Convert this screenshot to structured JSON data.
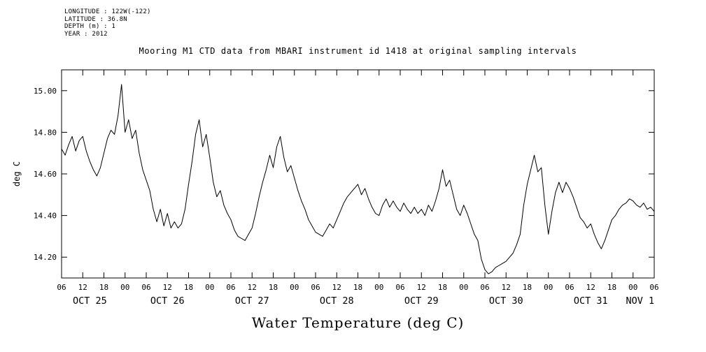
{
  "page": {
    "background": "#ffffff"
  },
  "meta": {
    "lines": [
      "LONGITUDE : 122W(-122)",
      "LATITUDE : 36.8N",
      "DEPTH (m) : 1",
      "YEAR : 2012"
    ]
  },
  "title": "Mooring M1 CTD data from MBARI instrument id 1418 at original sampling intervals",
  "chart_data": {
    "type": "line",
    "title": "Mooring M1 CTD data from MBARI instrument id 1418 at original sampling intervals",
    "ylabel": "deg C",
    "xlabel": "Water Temperature (deg C)",
    "grid": false,
    "line_color": "#000000",
    "axis_color": "#000000",
    "ylim": [
      14.1,
      15.1
    ],
    "x_range_hours": [
      0,
      168
    ],
    "x_start": "2012-10-25 06:00",
    "x_tick_interval_hours": 6,
    "x_tick_labels": [
      "06",
      "12",
      "18",
      "00",
      "06",
      "12",
      "18",
      "00",
      "06",
      "12",
      "18",
      "00",
      "06",
      "12",
      "18",
      "00",
      "06",
      "12",
      "18",
      "00",
      "06",
      "12",
      "18",
      "00",
      "06",
      "12",
      "18",
      "00",
      "06"
    ],
    "y_ticks": [
      {
        "value": 14.2,
        "label": "14.20"
      },
      {
        "value": 14.4,
        "label": "14.40"
      },
      {
        "value": 14.6,
        "label": "14.60"
      },
      {
        "value": 14.8,
        "label": "14.80"
      },
      {
        "value": 15.0,
        "label": "15.00"
      }
    ],
    "date_labels": [
      {
        "label": "OCT 25",
        "hour": 8
      },
      {
        "label": "OCT 26",
        "hour": 30
      },
      {
        "label": "OCT 27",
        "hour": 54
      },
      {
        "label": "OCT 28",
        "hour": 78
      },
      {
        "label": "OCT 29",
        "hour": 102
      },
      {
        "label": "OCT 30",
        "hour": 126
      },
      {
        "label": "OCT 31",
        "hour": 150
      },
      {
        "label": "NOV 1",
        "hour": 164
      }
    ],
    "series": [
      {
        "name": "Water Temperature (deg C)",
        "x_step_hours": 1,
        "y": [
          14.72,
          14.69,
          14.74,
          14.78,
          14.71,
          14.76,
          14.78,
          14.71,
          14.66,
          14.62,
          14.59,
          14.63,
          14.7,
          14.77,
          14.81,
          14.79,
          14.88,
          15.03,
          14.8,
          14.86,
          14.77,
          14.81,
          14.7,
          14.62,
          14.57,
          14.52,
          14.43,
          14.37,
          14.43,
          14.35,
          14.41,
          14.34,
          14.37,
          14.34,
          14.36,
          14.43,
          14.55,
          14.66,
          14.79,
          14.86,
          14.73,
          14.79,
          14.68,
          14.56,
          14.49,
          14.52,
          14.45,
          14.41,
          14.38,
          14.33,
          14.3,
          14.29,
          14.28,
          14.31,
          14.34,
          14.41,
          14.49,
          14.56,
          14.62,
          14.69,
          14.63,
          14.73,
          14.78,
          14.68,
          14.61,
          14.64,
          14.58,
          14.52,
          14.47,
          14.43,
          14.38,
          14.35,
          14.32,
          14.31,
          14.3,
          14.33,
          14.36,
          14.34,
          14.38,
          14.42,
          14.46,
          14.49,
          14.51,
          14.53,
          14.55,
          14.5,
          14.53,
          14.48,
          14.44,
          14.41,
          14.4,
          14.45,
          14.48,
          14.44,
          14.47,
          14.44,
          14.42,
          14.46,
          14.43,
          14.41,
          14.44,
          14.41,
          14.43,
          14.4,
          14.45,
          14.42,
          14.47,
          14.53,
          14.62,
          14.54,
          14.57,
          14.5,
          14.43,
          14.4,
          14.45,
          14.41,
          14.36,
          14.31,
          14.28,
          14.19,
          14.14,
          14.12,
          14.13,
          14.15,
          14.16,
          14.17,
          14.18,
          14.2,
          14.22,
          14.26,
          14.31,
          14.45,
          14.55,
          14.62,
          14.69,
          14.61,
          14.63,
          14.45,
          14.31,
          14.42,
          14.51,
          14.56,
          14.51,
          14.56,
          14.53,
          14.49,
          14.44,
          14.39,
          14.37,
          14.34,
          14.36,
          14.31,
          14.27,
          14.24,
          14.28,
          14.33,
          14.38,
          14.4,
          14.43,
          14.45,
          14.46,
          14.48,
          14.47,
          14.45,
          14.44,
          14.46,
          14.43,
          14.44,
          14.42
        ]
      }
    ]
  }
}
